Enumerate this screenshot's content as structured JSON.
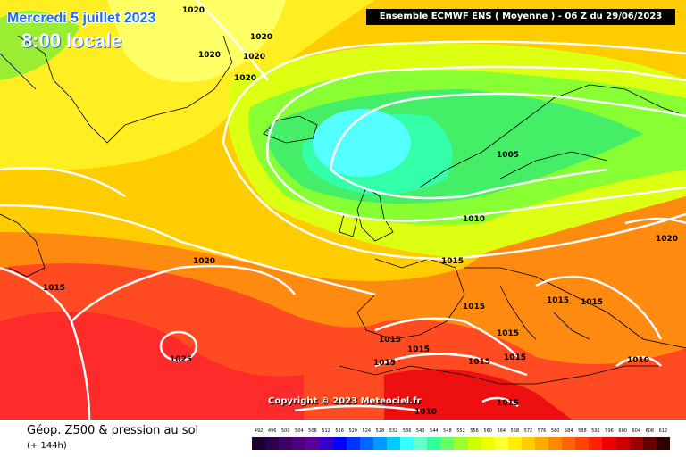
{
  "header": {
    "date": "Mercredi 5 juillet 2023",
    "time": "8:00 locale",
    "source": "Ensemble ECMWF ENS  ( Moyenne )  -  06 Z du 29/06/2023"
  },
  "copyright": "Copyright © 2023 Meteociel.fr",
  "footer": {
    "title": "Géop. Z500 & pression au sol",
    "subtitle": "(+ 144h)"
  },
  "colorbar": {
    "values": [
      "492",
      "496",
      "500",
      "504",
      "508",
      "512",
      "516",
      "520",
      "524",
      "528",
      "532",
      "536",
      "540",
      "544",
      "548",
      "552",
      "556",
      "560",
      "564",
      "568",
      "572",
      "576",
      "580",
      "584",
      "588",
      "592",
      "596",
      "600",
      "604",
      "608",
      "612"
    ],
    "colors": [
      "#1a0033",
      "#2c004d",
      "#3d0066",
      "#4d0080",
      "#5c0099",
      "#3300cc",
      "#0000ff",
      "#0033ff",
      "#0066ff",
      "#0099ff",
      "#00ccff",
      "#33ffff",
      "#66ffcc",
      "#33ff99",
      "#66ff66",
      "#99ff33",
      "#ccff00",
      "#eeff00",
      "#ffff33",
      "#ffee00",
      "#ffcc00",
      "#ffaa00",
      "#ff8800",
      "#ff6600",
      "#ff4400",
      "#ff2200",
      "#ee0000",
      "#cc0000",
      "#990000",
      "#660000",
      "#330000"
    ]
  },
  "isobars": [
    {
      "id": "p1",
      "value": "1020"
    },
    {
      "id": "p2",
      "value": "1020"
    },
    {
      "id": "p3",
      "value": "1020"
    },
    {
      "id": "p4",
      "value": "1020"
    },
    {
      "id": "p5",
      "value": "1020"
    },
    {
      "id": "p6",
      "value": "1005"
    },
    {
      "id": "p7",
      "value": "1010"
    },
    {
      "id": "p8",
      "value": "1015"
    },
    {
      "id": "p9",
      "value": "1020"
    },
    {
      "id": "p10",
      "value": "1020"
    },
    {
      "id": "p11",
      "value": "1015"
    },
    {
      "id": "p12",
      "value": "1025"
    },
    {
      "id": "p13",
      "value": "1015"
    },
    {
      "id": "p14",
      "value": "1015"
    },
    {
      "id": "p15",
      "value": "1015"
    },
    {
      "id": "p16",
      "value": "1015"
    },
    {
      "id": "p17",
      "value": "1015"
    },
    {
      "id": "p18",
      "value": "1015"
    },
    {
      "id": "p19",
      "value": "1015"
    },
    {
      "id": "p20",
      "value": "1015"
    },
    {
      "id": "p21",
      "value": "1015"
    },
    {
      "id": "p22",
      "value": "1015"
    },
    {
      "id": "p23",
      "value": "1010"
    },
    {
      "id": "p24",
      "value": "1010"
    },
    {
      "id": "p25",
      "value": "1015"
    }
  ]
}
